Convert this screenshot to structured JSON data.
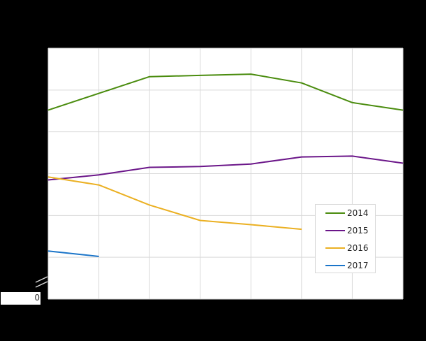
{
  "chart_data": {
    "type": "line",
    "title": "",
    "xlabel": "",
    "ylabel": "",
    "x": [
      1,
      2,
      3,
      4,
      5,
      6,
      7,
      8
    ],
    "y_axis": {
      "visible_tick_labels": [
        "0"
      ],
      "axis_break": true,
      "gridlines": 7,
      "units_note": "values expressed in gridline units above baseline (tick labels not visible)"
    },
    "ylim": [
      0,
      6
    ],
    "grid": true,
    "legend_position": "inside-bottom-right",
    "series": [
      {
        "name": "2014",
        "color": "#4a8c0e",
        "values": [
          4.52,
          4.92,
          5.32,
          5.35,
          5.38,
          5.17,
          4.7,
          4.52
        ]
      },
      {
        "name": "2015",
        "color": "#6b1689",
        "values": [
          2.85,
          2.97,
          3.15,
          3.17,
          3.23,
          3.4,
          3.42,
          3.25
        ]
      },
      {
        "name": "2016",
        "color": "#ebb022",
        "values": [
          2.92,
          2.73,
          2.25,
          1.88,
          1.78,
          1.67,
          null,
          null
        ]
      },
      {
        "name": "2017",
        "color": "#1b75c9",
        "values": [
          1.15,
          1.02,
          null,
          null,
          null,
          null,
          null,
          null
        ]
      }
    ]
  },
  "axis": {
    "zero_label": "0"
  },
  "legend": {
    "items": [
      {
        "label": "2014",
        "color": "#4a8c0e"
      },
      {
        "label": "2015",
        "color": "#6b1689"
      },
      {
        "label": "2016",
        "color": "#ebb022"
      },
      {
        "label": "2017",
        "color": "#1b75c9"
      }
    ]
  }
}
